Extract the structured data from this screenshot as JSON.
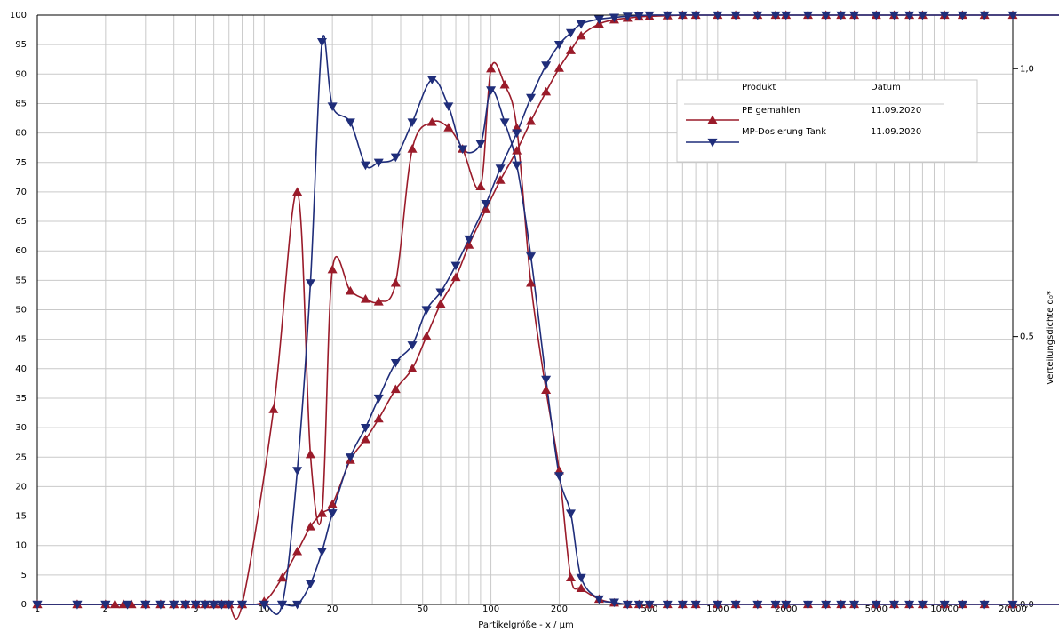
{
  "chart_data": {
    "type": "line",
    "xlabel": "Partikelgröße - x / µm",
    "ylabel_right": "Verteilungsdichte q₀*",
    "x_scale": "log",
    "xlim": [
      1,
      20000
    ],
    "ylim_left": [
      0,
      100
    ],
    "ylim_right": [
      0,
      1.1
    ],
    "grid": true,
    "legend_position": "top-right",
    "x_tick_labels": [
      {
        "value": 1,
        "label": "1"
      },
      {
        "value": 2,
        "label": "2"
      },
      {
        "value": 5,
        "label": "5"
      },
      {
        "value": 10,
        "label": "10"
      },
      {
        "value": 20,
        "label": "20"
      },
      {
        "value": 50,
        "label": "50"
      },
      {
        "value": 100,
        "label": "100"
      },
      {
        "value": 200,
        "label": "200"
      },
      {
        "value": 500,
        "label": "500"
      },
      {
        "value": 1000,
        "label": "1000"
      },
      {
        "value": 2000,
        "label": "2000"
      },
      {
        "value": 5000,
        "label": "5000"
      },
      {
        "value": 10000,
        "label": "10000"
      },
      {
        "value": 20000,
        "label": "20000"
      }
    ],
    "y_left_ticks": [
      {
        "value": 0,
        "label": "0"
      },
      {
        "value": 5,
        "label": "5"
      },
      {
        "value": 10,
        "label": "10"
      },
      {
        "value": 15,
        "label": "15"
      },
      {
        "value": 20,
        "label": "20"
      },
      {
        "value": 25,
        "label": "25"
      },
      {
        "value": 30,
        "label": "30"
      },
      {
        "value": 35,
        "label": "35"
      },
      {
        "value": 40,
        "label": "40"
      },
      {
        "value": 45,
        "label": "45"
      },
      {
        "value": 50,
        "label": "50"
      },
      {
        "value": 55,
        "label": "55"
      },
      {
        "value": 60,
        "label": "60"
      },
      {
        "value": 65,
        "label": "65"
      },
      {
        "value": 70,
        "label": "70"
      },
      {
        "value": 75,
        "label": "75"
      },
      {
        "value": 80,
        "label": "80"
      },
      {
        "value": 85,
        "label": "85"
      },
      {
        "value": 90,
        "label": "90"
      },
      {
        "value": 95,
        "label": "95"
      },
      {
        "value": 100,
        "label": "100"
      }
    ],
    "y_right_ticks": [
      {
        "value": 0,
        "label": "0,0"
      },
      {
        "value": 0.5,
        "label": "0,5"
      },
      {
        "value": 1.0,
        "label": "1,0"
      }
    ],
    "legend": {
      "header_product": "Produkt",
      "header_date": "Datum"
    },
    "series": [
      {
        "name": "PE gemahlen",
        "date": "11.09.2020",
        "color": "#9a1b2a",
        "marker": "triangle-up",
        "cumulative_Q0_percent": [
          [
            1,
            0
          ],
          [
            1.5,
            0
          ],
          [
            2,
            0
          ],
          [
            2.2,
            0
          ],
          [
            2.4,
            0
          ],
          [
            2.6,
            0
          ],
          [
            3,
            0
          ],
          [
            3.5,
            0
          ],
          [
            4,
            0
          ],
          [
            4.5,
            0
          ],
          [
            5,
            0
          ],
          [
            5.5,
            0
          ],
          [
            6,
            0
          ],
          [
            6.5,
            0
          ],
          [
            7,
            0
          ],
          [
            8,
            0
          ],
          [
            10,
            0.5
          ],
          [
            12,
            4.5
          ],
          [
            14,
            9
          ],
          [
            16,
            13.2
          ],
          [
            18,
            15.5
          ],
          [
            20,
            17
          ],
          [
            24,
            24.5
          ],
          [
            28,
            28
          ],
          [
            32,
            31.5
          ],
          [
            38,
            36.5
          ],
          [
            45,
            40
          ],
          [
            52,
            45.5
          ],
          [
            60,
            51
          ],
          [
            70,
            55.5
          ],
          [
            80,
            61
          ],
          [
            95,
            67
          ],
          [
            110,
            72
          ],
          [
            130,
            77
          ],
          [
            150,
            82
          ],
          [
            175,
            87
          ],
          [
            200,
            91
          ],
          [
            225,
            94
          ],
          [
            250,
            96.5
          ],
          [
            300,
            98.5
          ],
          [
            350,
            99.2
          ],
          [
            400,
            99.5
          ],
          [
            450,
            99.7
          ],
          [
            500,
            99.8
          ],
          [
            600,
            99.9
          ],
          [
            700,
            100
          ],
          [
            800,
            100
          ],
          [
            1000,
            100
          ],
          [
            1200,
            100
          ],
          [
            1500,
            100
          ],
          [
            1800,
            100
          ],
          [
            2000,
            100
          ],
          [
            2500,
            100
          ],
          [
            3000,
            100
          ],
          [
            3500,
            100
          ],
          [
            4000,
            100
          ],
          [
            5000,
            100
          ],
          [
            6000,
            100
          ],
          [
            7000,
            100
          ],
          [
            8000,
            100
          ],
          [
            10000,
            100
          ],
          [
            12000,
            100
          ],
          [
            15000,
            100
          ],
          [
            20000,
            100
          ]
        ],
        "density_q0": [
          [
            1,
            0
          ],
          [
            1.5,
            0
          ],
          [
            2,
            0
          ],
          [
            2.2,
            0
          ],
          [
            2.4,
            0
          ],
          [
            2.6,
            0
          ],
          [
            3,
            0
          ],
          [
            3.5,
            0
          ],
          [
            4,
            0
          ],
          [
            4.5,
            0
          ],
          [
            5,
            0
          ],
          [
            5.5,
            0
          ],
          [
            6,
            0
          ],
          [
            6.5,
            0
          ],
          [
            7,
            0
          ],
          [
            8,
            0
          ],
          [
            11,
            0.364
          ],
          [
            14,
            0.77
          ],
          [
            16,
            0.28
          ],
          [
            18,
            0.17
          ],
          [
            20,
            0.625
          ],
          [
            24,
            0.585
          ],
          [
            28,
            0.57
          ],
          [
            32,
            0.565
          ],
          [
            38,
            0.6
          ],
          [
            45,
            0.85
          ],
          [
            55,
            0.9
          ],
          [
            65,
            0.89
          ],
          [
            75,
            0.85
          ],
          [
            90,
            0.78
          ],
          [
            100,
            1.0
          ],
          [
            115,
            0.97
          ],
          [
            130,
            0.89
          ],
          [
            150,
            0.6
          ],
          [
            175,
            0.4
          ],
          [
            200,
            0.25
          ],
          [
            225,
            0.05
          ],
          [
            250,
            0.03
          ],
          [
            300,
            0.01
          ],
          [
            350,
            0.003
          ],
          [
            400,
            0
          ],
          [
            450,
            0
          ],
          [
            500,
            0
          ],
          [
            600,
            0
          ],
          [
            700,
            0
          ],
          [
            800,
            0
          ],
          [
            1000,
            0
          ],
          [
            1200,
            0
          ],
          [
            1500,
            0
          ],
          [
            1800,
            0
          ],
          [
            2000,
            0
          ],
          [
            2500,
            0
          ],
          [
            3000,
            0
          ],
          [
            3500,
            0
          ],
          [
            4000,
            0
          ],
          [
            5000,
            0
          ],
          [
            6000,
            0
          ],
          [
            7000,
            0
          ],
          [
            8000,
            0
          ],
          [
            10000,
            0
          ],
          [
            12000,
            0
          ],
          [
            15000,
            0
          ],
          [
            20000,
            0
          ]
        ]
      },
      {
        "name": "MP-Dosierung Tank",
        "date": "11.09.2020",
        "color": "#1f2d7a",
        "marker": "triangle-down",
        "cumulative_Q0_percent": [
          [
            1,
            0
          ],
          [
            1.5,
            0
          ],
          [
            2,
            0
          ],
          [
            2.5,
            0
          ],
          [
            3,
            0
          ],
          [
            3.5,
            0
          ],
          [
            4,
            0
          ],
          [
            4.5,
            0
          ],
          [
            5,
            0
          ],
          [
            5.5,
            0
          ],
          [
            6,
            0
          ],
          [
            6.5,
            0
          ],
          [
            7,
            0
          ],
          [
            8,
            0
          ],
          [
            10,
            0
          ],
          [
            12,
            0
          ],
          [
            14,
            0
          ],
          [
            16,
            3.5
          ],
          [
            18,
            9
          ],
          [
            20,
            15.5
          ],
          [
            24,
            25
          ],
          [
            28,
            30
          ],
          [
            32,
            35
          ],
          [
            38,
            41
          ],
          [
            45,
            44
          ],
          [
            52,
            50
          ],
          [
            60,
            53
          ],
          [
            70,
            57.5
          ],
          [
            80,
            62
          ],
          [
            95,
            68
          ],
          [
            110,
            74
          ],
          [
            130,
            80
          ],
          [
            150,
            86
          ],
          [
            175,
            91.5
          ],
          [
            200,
            95
          ],
          [
            225,
            97
          ],
          [
            250,
            98.5
          ],
          [
            300,
            99.3
          ],
          [
            350,
            99.6
          ],
          [
            400,
            99.8
          ],
          [
            450,
            99.9
          ],
          [
            500,
            100
          ],
          [
            600,
            100
          ],
          [
            700,
            100
          ],
          [
            800,
            100
          ],
          [
            1000,
            100
          ],
          [
            1200,
            100
          ],
          [
            1500,
            100
          ],
          [
            1800,
            100
          ],
          [
            2000,
            100
          ],
          [
            2500,
            100
          ],
          [
            3000,
            100
          ],
          [
            3500,
            100
          ],
          [
            4000,
            100
          ],
          [
            5000,
            100
          ],
          [
            6000,
            100
          ],
          [
            7000,
            100
          ],
          [
            8000,
            100
          ],
          [
            10000,
            100
          ],
          [
            12000,
            100
          ],
          [
            15000,
            100
          ],
          [
            20000,
            100
          ]
        ],
        "density_q0": [
          [
            1,
            0
          ],
          [
            1.5,
            0
          ],
          [
            2,
            0
          ],
          [
            2.5,
            0
          ],
          [
            3,
            0
          ],
          [
            3.5,
            0
          ],
          [
            4,
            0
          ],
          [
            4.5,
            0
          ],
          [
            5,
            0
          ],
          [
            5.5,
            0
          ],
          [
            6,
            0
          ],
          [
            6.5,
            0
          ],
          [
            7,
            0
          ],
          [
            8,
            0
          ],
          [
            10,
            0
          ],
          [
            12,
            0
          ],
          [
            14,
            0.25
          ],
          [
            16,
            0.6
          ],
          [
            18,
            1.05
          ],
          [
            20,
            0.93
          ],
          [
            24,
            0.9
          ],
          [
            28,
            0.82
          ],
          [
            32,
            0.825
          ],
          [
            38,
            0.835
          ],
          [
            45,
            0.9
          ],
          [
            55,
            0.98
          ],
          [
            65,
            0.93
          ],
          [
            75,
            0.85
          ],
          [
            90,
            0.86
          ],
          [
            100,
            0.96
          ],
          [
            115,
            0.9
          ],
          [
            130,
            0.82
          ],
          [
            150,
            0.65
          ],
          [
            175,
            0.42
          ],
          [
            200,
            0.24
          ],
          [
            225,
            0.17
          ],
          [
            250,
            0.05
          ],
          [
            300,
            0.01
          ],
          [
            350,
            0.004
          ],
          [
            400,
            0
          ],
          [
            450,
            0
          ],
          [
            500,
            0
          ],
          [
            600,
            0
          ],
          [
            700,
            0
          ],
          [
            800,
            0
          ],
          [
            1000,
            0
          ],
          [
            1200,
            0
          ],
          [
            1500,
            0
          ],
          [
            1800,
            0
          ],
          [
            2000,
            0
          ],
          [
            2500,
            0
          ],
          [
            3000,
            0
          ],
          [
            3500,
            0
          ],
          [
            4000,
            0
          ],
          [
            5000,
            0
          ],
          [
            6000,
            0
          ],
          [
            7000,
            0
          ],
          [
            8000,
            0
          ],
          [
            10000,
            0
          ],
          [
            12000,
            0
          ],
          [
            15000,
            0
          ],
          [
            20000,
            0
          ]
        ]
      }
    ]
  }
}
